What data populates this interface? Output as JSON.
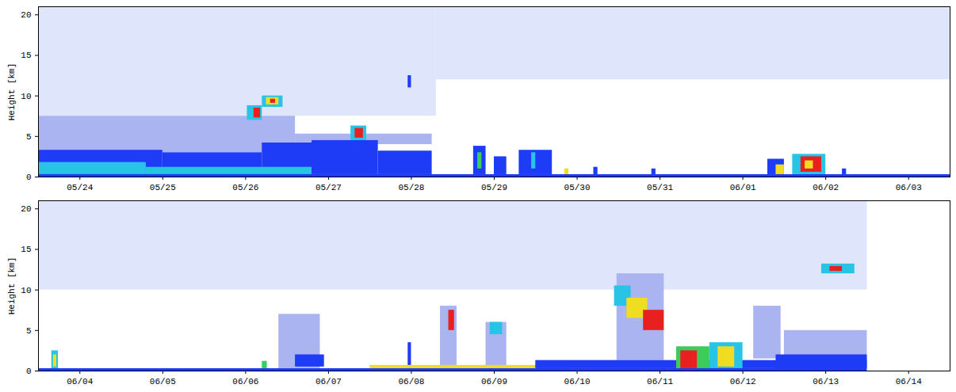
{
  "chart_data": [
    {
      "type": "heatmap",
      "ylabel": "Height [km]",
      "xlim": [
        0,
        11
      ],
      "xticks": [
        {
          "value": 0.5,
          "label": "05/24"
        },
        {
          "value": 1.5,
          "label": "05/25"
        },
        {
          "value": 2.5,
          "label": "05/26"
        },
        {
          "value": 3.5,
          "label": "05/27"
        },
        {
          "value": 4.5,
          "label": "05/28"
        },
        {
          "value": 5.5,
          "label": "05/29"
        },
        {
          "value": 6.5,
          "label": "05/30"
        },
        {
          "value": 7.5,
          "label": "05/31"
        },
        {
          "value": 8.5,
          "label": "06/01"
        },
        {
          "value": 9.5,
          "label": "06/02"
        },
        {
          "value": 10.5,
          "label": "06/03"
        }
      ],
      "ylim": [
        0,
        21
      ],
      "yticks": [
        0,
        5,
        10,
        15,
        20
      ],
      "colors": [
        "#dfe5fb",
        "#aab4f0",
        "#1e3cf5",
        "#27c4e6",
        "#3ccc5c",
        "#f0dc20",
        "#e82020"
      ],
      "cells": [
        [
          0,
          4.8,
          7.5,
          21,
          0
        ],
        [
          4.8,
          11,
          12,
          21,
          0
        ],
        [
          0,
          3.1,
          3,
          7.5,
          1
        ],
        [
          3.1,
          4.75,
          4,
          5.3,
          1
        ],
        [
          0,
          1.5,
          0.3,
          3.3,
          2
        ],
        [
          1.5,
          2.7,
          0.3,
          3.0,
          2
        ],
        [
          2.7,
          3.3,
          0.3,
          4.2,
          2
        ],
        [
          3.3,
          4.1,
          0.3,
          4.5,
          2
        ],
        [
          4.1,
          4.75,
          0.3,
          3.2,
          2
        ],
        [
          0,
          1.3,
          0.3,
          1.8,
          3
        ],
        [
          1.3,
          3.3,
          0.3,
          1.2,
          3
        ],
        [
          0,
          11,
          0,
          0.3,
          2
        ],
        [
          2.52,
          2.7,
          7,
          8.8,
          3
        ],
        [
          2.6,
          2.68,
          7.3,
          8.5,
          6
        ],
        [
          2.7,
          2.95,
          8.6,
          10,
          3
        ],
        [
          2.75,
          2.9,
          8.9,
          9.8,
          5
        ],
        [
          2.8,
          2.86,
          9.1,
          9.6,
          6
        ],
        [
          3.77,
          3.96,
          4.5,
          6.3,
          3
        ],
        [
          3.82,
          3.92,
          4.8,
          6,
          6
        ],
        [
          4.46,
          4.5,
          11,
          12.5,
          2
        ],
        [
          5.25,
          5.4,
          0.3,
          3.8,
          2
        ],
        [
          5.5,
          5.65,
          0.3,
          2.5,
          2
        ],
        [
          5.3,
          5.35,
          1,
          3,
          4
        ],
        [
          5.8,
          6.2,
          0.3,
          3.3,
          2
        ],
        [
          5.95,
          6.0,
          1,
          3,
          3
        ],
        [
          6.35,
          6.4,
          0.3,
          1,
          5
        ],
        [
          6.7,
          6.75,
          0.3,
          1.2,
          2
        ],
        [
          7.4,
          7.45,
          0.3,
          1.0,
          2
        ],
        [
          8.8,
          9.0,
          0.3,
          2.2,
          2
        ],
        [
          8.9,
          9.0,
          0.3,
          1.5,
          5
        ],
        [
          9.1,
          9.5,
          0.3,
          2.8,
          3
        ],
        [
          9.2,
          9.45,
          0.6,
          2.5,
          6
        ],
        [
          9.25,
          9.35,
          1,
          2,
          5
        ],
        [
          9.7,
          9.75,
          0.3,
          1,
          2
        ]
      ]
    },
    {
      "type": "heatmap",
      "ylabel": "Height [km]",
      "xlim": [
        0,
        11
      ],
      "xticks": [
        {
          "value": 0.5,
          "label": "06/04"
        },
        {
          "value": 1.5,
          "label": "06/05"
        },
        {
          "value": 2.5,
          "label": "06/06"
        },
        {
          "value": 3.5,
          "label": "06/07"
        },
        {
          "value": 4.5,
          "label": "06/08"
        },
        {
          "value": 5.5,
          "label": "06/09"
        },
        {
          "value": 6.5,
          "label": "06/10"
        },
        {
          "value": 7.5,
          "label": "06/11"
        },
        {
          "value": 8.5,
          "label": "06/12"
        },
        {
          "value": 9.5,
          "label": "06/13"
        },
        {
          "value": 10.5,
          "label": "06/14"
        }
      ],
      "ylim": [
        0,
        21
      ],
      "yticks": [
        0,
        5,
        10,
        15,
        20
      ],
      "colors": [
        "#dfe5fb",
        "#aab4f0",
        "#1e3cf5",
        "#27c4e6",
        "#3ccc5c",
        "#f0dc20",
        "#e82020"
      ],
      "cells": [
        [
          0,
          10,
          10,
          21,
          0
        ],
        [
          0,
          10,
          0,
          0.3,
          2
        ],
        [
          0.16,
          0.24,
          0.3,
          2.5,
          3
        ],
        [
          0.18,
          0.22,
          0.5,
          2,
          5
        ],
        [
          2.7,
          2.76,
          0.3,
          1.2,
          4
        ],
        [
          2.9,
          3.4,
          0.3,
          7,
          1
        ],
        [
          3.1,
          3.45,
          0.5,
          2,
          2
        ],
        [
          4.46,
          4.5,
          0.3,
          3.5,
          2
        ],
        [
          4.85,
          5.05,
          0.3,
          8,
          1
        ],
        [
          4.95,
          5.02,
          5,
          7.5,
          6
        ],
        [
          5.4,
          5.65,
          0.3,
          6,
          1
        ],
        [
          5.45,
          5.6,
          4.5,
          6,
          3
        ],
        [
          4.0,
          6.5,
          0.3,
          0.7,
          5
        ],
        [
          6.98,
          7.55,
          1.3,
          12,
          1
        ],
        [
          6.0,
          10.0,
          0.3,
          1.3,
          2
        ],
        [
          6.95,
          7.15,
          8,
          10.5,
          3
        ],
        [
          7.1,
          7.35,
          6.5,
          9,
          5
        ],
        [
          7.3,
          7.55,
          5,
          7.5,
          6
        ],
        [
          7.7,
          8.1,
          0.3,
          3,
          4
        ],
        [
          7.75,
          7.95,
          0.3,
          2.5,
          6
        ],
        [
          8.1,
          8.5,
          0.3,
          3.5,
          3
        ],
        [
          8.2,
          8.4,
          0.5,
          3,
          5
        ],
        [
          8.63,
          8.96,
          1.5,
          8,
          1
        ],
        [
          9.0,
          10.0,
          1.3,
          5,
          1
        ],
        [
          8.9,
          10.0,
          0.3,
          2,
          2
        ],
        [
          9.45,
          9.85,
          12,
          13.2,
          3
        ],
        [
          9.55,
          9.7,
          12.3,
          12.9,
          6
        ]
      ]
    }
  ]
}
